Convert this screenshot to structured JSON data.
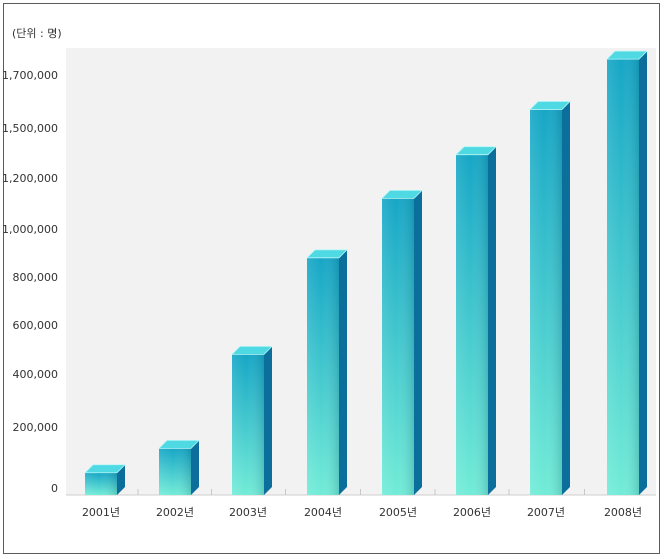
{
  "unit_label": "(단위 : 명)",
  "chart_data": {
    "type": "bar",
    "categories": [
      "2001년",
      "2002년",
      "2003년",
      "2004년",
      "2005년",
      "2006년",
      "2007년",
      "2008년"
    ],
    "values": [
      50000,
      130000,
      480000,
      880000,
      1120000,
      1340000,
      1570000,
      1760000
    ],
    "y_ticks": [
      {
        "value": 0,
        "label": "0"
      },
      {
        "value": 200000,
        "label": "200,000"
      },
      {
        "value": 400000,
        "label": "400,000"
      },
      {
        "value": 600000,
        "label": "600,000"
      },
      {
        "value": 800000,
        "label": "800,000"
      },
      {
        "value": 1000000,
        "label": "1,000,000"
      },
      {
        "value": 1200000,
        "label": "1,200,000"
      },
      {
        "value": 1500000,
        "label": "1,500,000"
      },
      {
        "value": 1700000,
        "label": "1,700,000"
      }
    ],
    "title": "",
    "xlabel": "",
    "ylabel": "",
    "grid": false,
    "colors": {
      "plot_bg": "#f2f2f2",
      "bar_front_top": "#16a6c6",
      "bar_front_bottom": "#72ecd7",
      "bar_top": "#4fd9e2",
      "bar_side": "#0c6f9b"
    }
  }
}
